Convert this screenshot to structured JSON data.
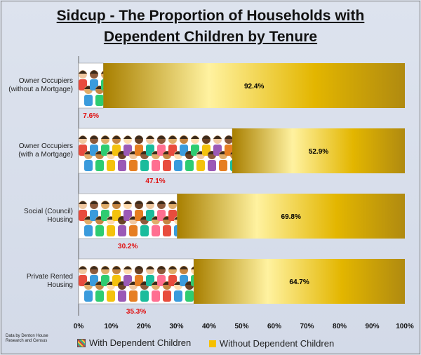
{
  "chart_data": {
    "type": "bar",
    "orientation": "horizontal",
    "stacked": true,
    "title_line1": "Sidcup - The Proportion of Households with",
    "title_line2": "Dependent Children by Tenure",
    "categories": [
      [
        "Owner Occupiers",
        "(without a Mortgage)"
      ],
      [
        "Owner Occupiers",
        "(with a Mortgage)"
      ],
      [
        "Social (Council)",
        "Housing"
      ],
      [
        "Private Rented",
        "Housing"
      ]
    ],
    "series": [
      {
        "name": "With Dependent Children",
        "values": [
          7.6,
          47.1,
          30.2,
          35.3
        ],
        "labels": [
          "7.6%",
          "47.1%",
          "30.2%",
          "35.3%"
        ]
      },
      {
        "name": "Without Dependent Children",
        "values": [
          92.4,
          52.9,
          69.8,
          64.7
        ],
        "labels": [
          "92.4%",
          "52.9%",
          "69.8%",
          "64.7%"
        ]
      }
    ],
    "x_ticks": [
      "0%",
      "10%",
      "20%",
      "30%",
      "40%",
      "50%",
      "60%",
      "70%",
      "80%",
      "90%",
      "100%"
    ],
    "xlim": [
      0,
      100
    ],
    "legend_position": "bottom",
    "colors": {
      "without": "#e0b400",
      "without_highlight": "#fff2a0",
      "with_image_bg": "#ffffff"
    }
  },
  "source_note": [
    "Data by Denton House",
    "Research and Census"
  ]
}
